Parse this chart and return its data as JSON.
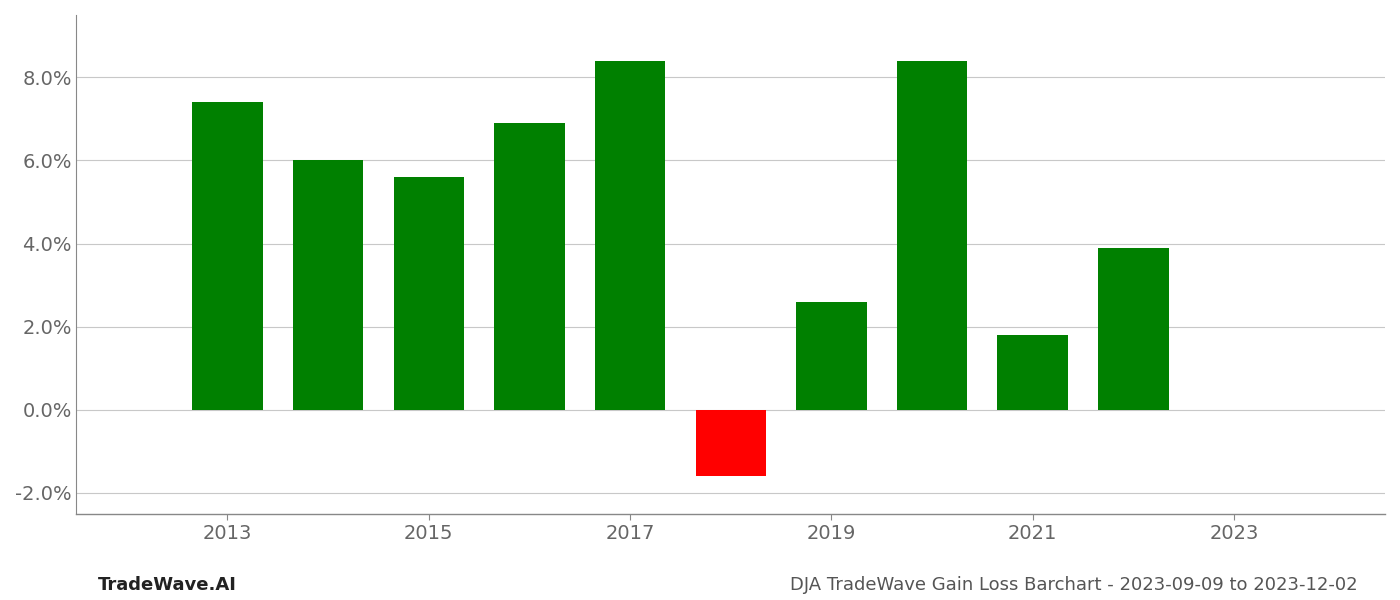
{
  "years": [
    2013,
    2014,
    2015,
    2016,
    2017,
    2018,
    2019,
    2020,
    2021,
    2022
  ],
  "values": [
    0.074,
    0.06,
    0.056,
    0.069,
    0.084,
    -0.016,
    0.026,
    0.084,
    0.018,
    0.039
  ],
  "bar_colors": [
    "#008000",
    "#008000",
    "#008000",
    "#008000",
    "#008000",
    "#ff0000",
    "#008000",
    "#008000",
    "#008000",
    "#008000"
  ],
  "ylim": [
    -0.025,
    0.095
  ],
  "yticks": [
    -0.02,
    0.0,
    0.02,
    0.04,
    0.06,
    0.08
  ],
  "xlim": [
    2011.5,
    2024.5
  ],
  "xticks": [
    2013,
    2015,
    2017,
    2019,
    2021,
    2023
  ],
  "footer_left": "TradeWave.AI",
  "footer_right": "DJA TradeWave Gain Loss Barchart - 2023-09-09 to 2023-12-02",
  "background_color": "#ffffff",
  "grid_color": "#c8c8c8",
  "spine_color": "#888888",
  "text_color": "#666666",
  "bar_width": 0.7,
  "tick_fontsize": 14,
  "footer_fontsize": 13
}
